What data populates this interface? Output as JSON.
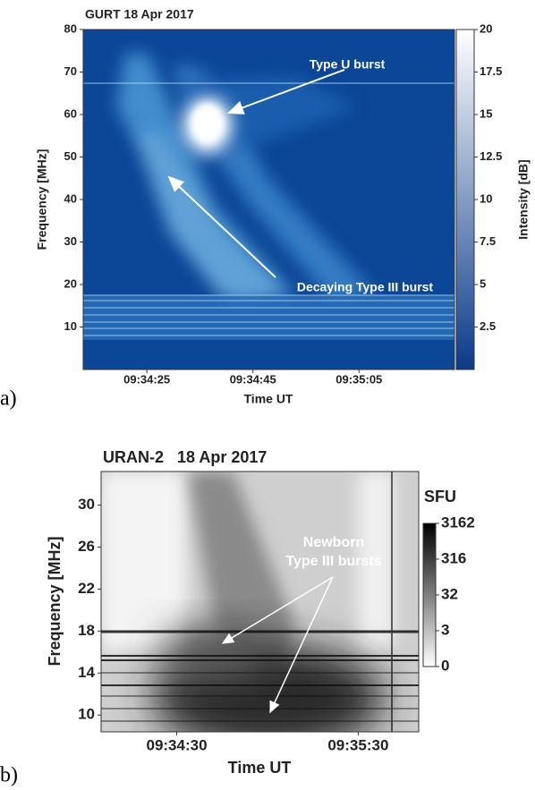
{
  "chart_data": [
    {
      "type": "heatmap",
      "panel": "a)",
      "title": "GURT 18 Apr 2017",
      "xlabel": "Time UT",
      "ylabel": "Frequency [MHz]",
      "xlim": [
        "09:34:13",
        "09:35:23"
      ],
      "xticks": [
        "09:34:25",
        "09:34:45",
        "09:35:05"
      ],
      "ylim": [
        0,
        80
      ],
      "yticks": [
        10,
        20,
        30,
        40,
        50,
        60,
        70,
        80
      ],
      "colorbar": {
        "label": "Intensity [dB]",
        "lim": [
          0,
          20
        ],
        "ticks": [
          2.5,
          5,
          7.5,
          10,
          12.5,
          15,
          17.5,
          20
        ],
        "colors": [
          "#0a3a8a",
          "#ffffff"
        ]
      },
      "annotations": [
        {
          "text": "Type U burst"
        },
        {
          "text": "Decaying Type III burst"
        }
      ]
    },
    {
      "type": "heatmap",
      "panel": "b)",
      "title": "URAN-2   18 Apr 2017",
      "xlabel": "Time UT",
      "ylabel": "Frequency [MHz]",
      "xlim": [
        "09:34:05",
        "09:35:50"
      ],
      "xticks": [
        "09:34:30",
        "09:35:30"
      ],
      "ylim": [
        8.4,
        33.2
      ],
      "yticks": [
        10,
        14,
        18,
        22,
        26,
        30
      ],
      "colorbar": {
        "label": "SFU",
        "scale": "log",
        "ticks": [
          0,
          3,
          32,
          316,
          3162
        ],
        "colors": [
          "#ffffff",
          "#000000"
        ]
      },
      "annotations": [
        {
          "text": [
            "Newborn",
            "Type III bursts"
          ]
        }
      ]
    }
  ]
}
